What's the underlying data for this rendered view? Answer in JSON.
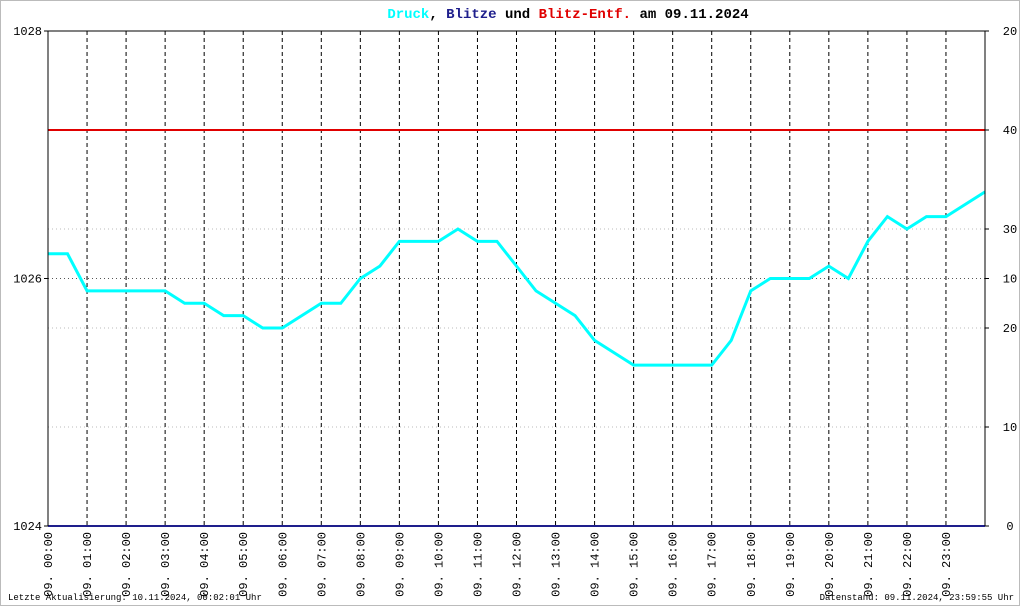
{
  "chart_data": {
    "type": "line",
    "title_separators": [
      ",",
      "und",
      "am 09.11.2024"
    ],
    "footer_left": "Letzte Aktualisierung: 10.11.2024, 00:02:01 Uhr",
    "footer_right": "Datenstand: 09.11.2024, 23:59:55 Uhr",
    "xlim": [
      0,
      24
    ],
    "xticks": [
      {
        "value": 0,
        "label": "09. 00:00"
      },
      {
        "value": 1,
        "label": "09. 01:00"
      },
      {
        "value": 2,
        "label": "09. 02:00"
      },
      {
        "value": 3,
        "label": "09. 03:00"
      },
      {
        "value": 4,
        "label": "09. 04:00"
      },
      {
        "value": 5,
        "label": "09. 05:00"
      },
      {
        "value": 6,
        "label": "09. 06:00"
      },
      {
        "value": 7,
        "label": "09. 07:00"
      },
      {
        "value": 8,
        "label": "09. 08:00"
      },
      {
        "value": 9,
        "label": "09. 09:00"
      },
      {
        "value": 10,
        "label": "09. 10:00"
      },
      {
        "value": 11,
        "label": "09. 11:00"
      },
      {
        "value": 12,
        "label": "09. 12:00"
      },
      {
        "value": 13,
        "label": "09. 13:00"
      },
      {
        "value": 14,
        "label": "09. 14:00"
      },
      {
        "value": 15,
        "label": "09. 15:00"
      },
      {
        "value": 16,
        "label": "09. 16:00"
      },
      {
        "value": 17,
        "label": "09. 17:00"
      },
      {
        "value": 18,
        "label": "09. 18:00"
      },
      {
        "value": 19,
        "label": "09. 19:00"
      },
      {
        "value": 20,
        "label": "09. 20:00"
      },
      {
        "value": 21,
        "label": "09. 21:00"
      },
      {
        "value": 22,
        "label": "09. 22:00"
      },
      {
        "value": 23,
        "label": "09. 23:00"
      }
    ],
    "ylim": [
      1024,
      1028
    ],
    "yticks": [
      1024,
      1026,
      1028
    ],
    "y2lim": [
      0,
      50
    ],
    "y2ticks": [
      0,
      10,
      20,
      30,
      40
    ],
    "y3lim": [
      0,
      20
    ],
    "y3ticks": [
      10,
      20
    ],
    "series": [
      {
        "name": "Druck",
        "color": "#00ffff",
        "axis": "y",
        "x": [
          0,
          0.5,
          1,
          1.5,
          2,
          2.5,
          3,
          3.5,
          4,
          4.5,
          5,
          5.5,
          6,
          6.5,
          7,
          7.5,
          8,
          8.5,
          9,
          9.5,
          10,
          10.5,
          11,
          11.5,
          12,
          12.5,
          13,
          13.5,
          14,
          14.5,
          15,
          15.5,
          16,
          16.5,
          17,
          17.5,
          18,
          18.5,
          19,
          19.5,
          20,
          20.5,
          21,
          21.5,
          22,
          22.5,
          23,
          23.5,
          24
        ],
        "values": [
          1026.2,
          1026.2,
          1025.9,
          1025.9,
          1025.9,
          1025.9,
          1025.9,
          1025.8,
          1025.8,
          1025.7,
          1025.7,
          1025.6,
          1025.6,
          1025.7,
          1025.8,
          1025.8,
          1026.0,
          1026.1,
          1026.3,
          1026.3,
          1026.3,
          1026.4,
          1026.3,
          1026.3,
          1026.1,
          1025.9,
          1025.8,
          1025.7,
          1025.5,
          1025.4,
          1025.3,
          1025.3,
          1025.3,
          1025.3,
          1025.3,
          1025.5,
          1025.9,
          1026.0,
          1026.0,
          1026.0,
          1026.1,
          1026.0,
          1026.3,
          1026.5,
          1026.4,
          1026.5,
          1026.5,
          1026.6,
          1026.7
        ]
      },
      {
        "name": "Blitze",
        "color": "#1e1e8c",
        "axis": "y3",
        "x": [
          0,
          24
        ],
        "values": [
          0,
          0
        ]
      },
      {
        "name": "Blitz-Entf.",
        "color": "#e00000",
        "axis": "y2",
        "x": [
          0,
          24
        ],
        "values": [
          40,
          40
        ]
      }
    ]
  }
}
